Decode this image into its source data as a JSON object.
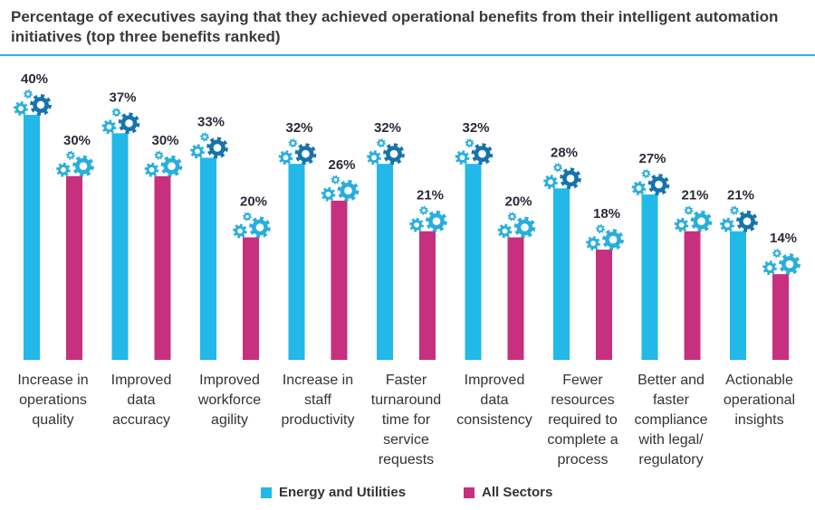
{
  "title": "Percentage of executives saying that they achieved operational benefits from their intelligent automation initiatives (top three benefits ranked)",
  "colors": {
    "energy": "#22b8e8",
    "all": "#c7307f",
    "gear_dark": "#1673ac",
    "gear_light": "#28aedd",
    "rule": "#2bb5e3"
  },
  "chart_data": {
    "type": "bar",
    "title": "Percentage of executives saying that they achieved operational benefits from their intelligent automation initiatives (top three benefits ranked)",
    "xlabel": "",
    "ylabel": "",
    "ylim": [
      0,
      40
    ],
    "categories": [
      "Increase in operations quality",
      "Improved data accuracy",
      "Improved workforce agility",
      "Increase in staff productivity",
      "Faster turnaround time for service requests",
      "Improved data consistency",
      "Fewer resources required to complete a process",
      "Better and faster compliance with legal/ regulatory",
      "Actionable operational insights"
    ],
    "category_lines": [
      [
        "Increase in",
        "operations",
        "quality"
      ],
      [
        "Improved",
        "data",
        "accuracy"
      ],
      [
        "Improved",
        "workforce",
        "agility"
      ],
      [
        "Increase in",
        "staff",
        "productivity"
      ],
      [
        "Faster",
        "turnaround",
        "time for",
        "service",
        "requests"
      ],
      [
        "Improved",
        "data",
        "consistency"
      ],
      [
        "Fewer",
        "resources",
        "required to",
        "complete a",
        "process"
      ],
      [
        "Better and",
        "faster",
        "compliance",
        "with legal/",
        "regulatory"
      ],
      [
        "Actionable",
        "operational",
        "insights"
      ]
    ],
    "series": [
      {
        "name": "Energy and Utilities",
        "values": [
          40,
          37,
          33,
          32,
          32,
          32,
          28,
          27,
          21
        ],
        "labels": [
          "40%",
          "37%",
          "33%",
          "32%",
          "32%",
          "32%",
          "28%",
          "27%",
          "21%"
        ]
      },
      {
        "name": "All Sectors",
        "values": [
          30,
          30,
          20,
          26,
          21,
          20,
          18,
          21,
          14
        ],
        "labels": [
          "30%",
          "30%",
          "20%",
          "26%",
          "21%",
          "20%",
          "18%",
          "21%",
          "14%"
        ]
      }
    ],
    "legend": "bottom-center",
    "grid": false
  },
  "legend_items": [
    {
      "label": "Energy and Utilities"
    },
    {
      "label": "All Sectors"
    }
  ]
}
